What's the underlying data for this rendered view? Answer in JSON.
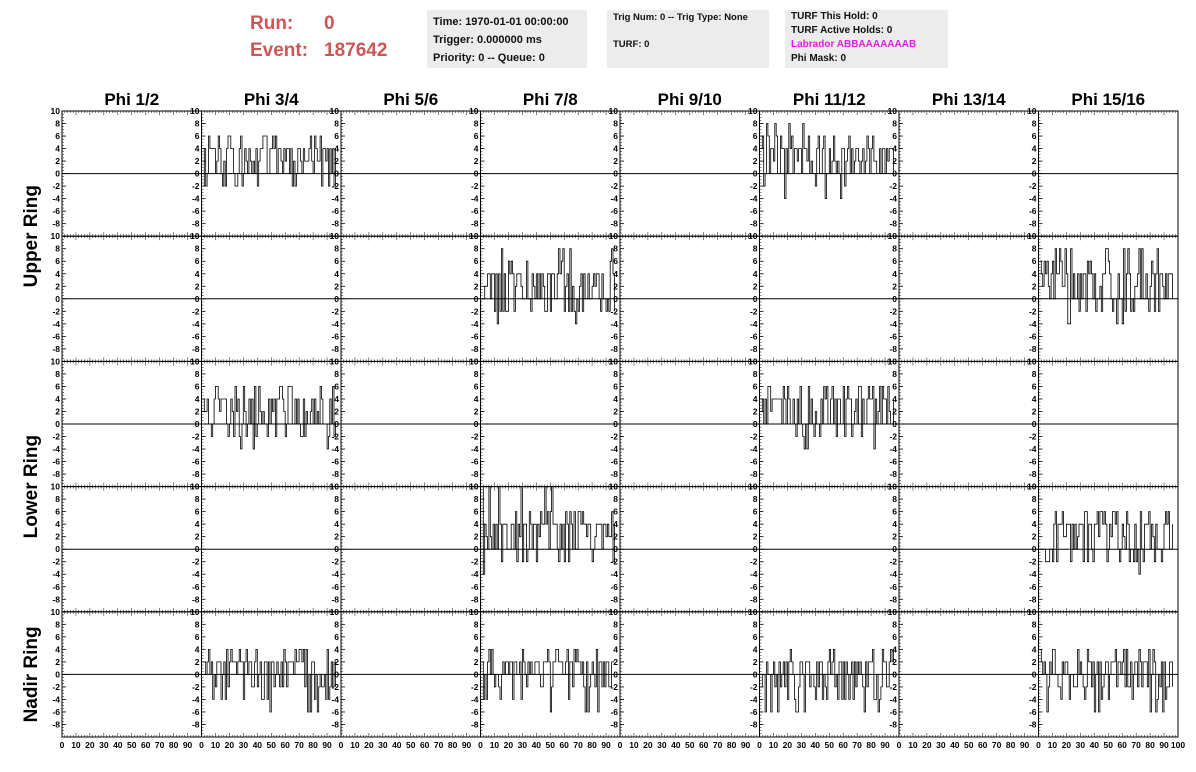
{
  "header": {
    "run_label": "Run:",
    "run_value": "0",
    "event_label": "Event:",
    "event_value": "187642",
    "time": "Time: 1970-01-01 00:00:00",
    "trigger": "Trigger: 0.000000 ms",
    "priority": "Priority: 0 -- Queue: 0",
    "trig_num": "Trig Num: 0 -- Trig Type: None",
    "turf": "TURF: 0",
    "turf_this_hold": "TURF This Hold: 0",
    "turf_active_holds": "TURF Active Holds: 0",
    "labrador": "Labrador ABBAAAAAAAB",
    "phi_mask": "Phi Mask: 0"
  },
  "colors": {
    "run_event": "#cc5555",
    "labrador": "#e020e0",
    "info_bg": "#ececec",
    "trace": "#000000"
  },
  "chart_data": {
    "type": "line",
    "columns": [
      "Phi 1/2",
      "Phi 3/4",
      "Phi 5/6",
      "Phi 7/8",
      "Phi 9/10",
      "Phi 11/12",
      "Phi 13/14",
      "Phi 15/16"
    ],
    "rings": [
      {
        "label": "Upper Ring",
        "rows": 2
      },
      {
        "label": "Lower Ring",
        "rows": 2
      },
      {
        "label": "Nadir Ring",
        "rows": 1
      }
    ],
    "xlim": [
      0,
      100
    ],
    "ylim": [
      -10,
      10
    ],
    "xticks": [
      "0",
      "10",
      "20",
      "30",
      "40",
      "50",
      "60",
      "70",
      "80",
      "90",
      "100"
    ],
    "yticks": [
      "10",
      "8",
      "6",
      "4",
      "2",
      "0",
      "-2",
      "-4",
      "-6",
      "-8",
      ""
    ],
    "grid": false,
    "traces": [
      {
        "row": 0,
        "col": 1,
        "kind": "pos",
        "amp": 4,
        "peak": 6
      },
      {
        "row": 0,
        "col": 5,
        "kind": "pos",
        "amp": 4,
        "peak": 8
      },
      {
        "row": 1,
        "col": 3,
        "kind": "pos",
        "amp": 4,
        "peak": 8
      },
      {
        "row": 1,
        "col": 7,
        "kind": "pos",
        "amp": 4,
        "peak": 8
      },
      {
        "row": 2,
        "col": 1,
        "kind": "pos",
        "amp": 4,
        "peak": 6
      },
      {
        "row": 2,
        "col": 5,
        "kind": "pos",
        "amp": 4,
        "peak": 6
      },
      {
        "row": 3,
        "col": 3,
        "kind": "pos",
        "amp": 4,
        "peak": 10
      },
      {
        "row": 3,
        "col": 7,
        "kind": "pos",
        "amp": 4,
        "peak": 6
      },
      {
        "row": 4,
        "col": 1,
        "kind": "bi",
        "amp": 2,
        "peak": 4
      },
      {
        "row": 4,
        "col": 3,
        "kind": "bi",
        "amp": 2,
        "peak": 4
      },
      {
        "row": 4,
        "col": 5,
        "kind": "bi",
        "amp": 2,
        "peak": 4
      },
      {
        "row": 4,
        "col": 7,
        "kind": "bi",
        "amp": 2,
        "peak": 4
      }
    ]
  }
}
